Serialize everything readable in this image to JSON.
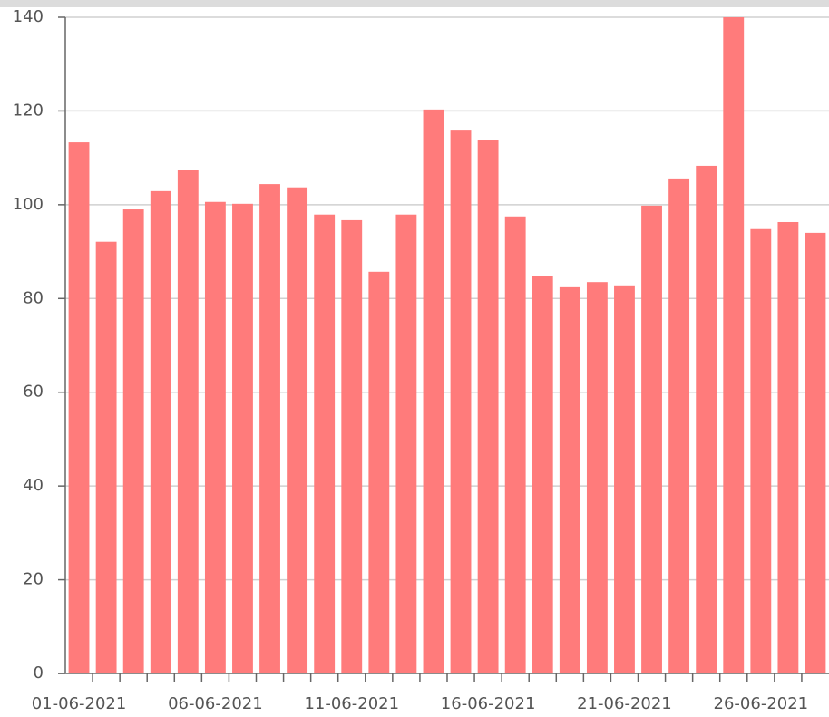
{
  "chart_data": {
    "type": "bar",
    "categories": [
      "01-06-2021",
      null,
      null,
      null,
      null,
      "06-06-2021",
      null,
      null,
      null,
      null,
      "11-06-2021",
      null,
      null,
      null,
      null,
      "16-06-2021",
      null,
      null,
      null,
      null,
      "21-06-2021",
      null,
      null,
      null,
      null,
      "26-06-2021",
      null,
      null
    ],
    "values": [
      113.3,
      92.1,
      99.0,
      102.9,
      107.5,
      100.6,
      100.2,
      104.4,
      103.7,
      97.9,
      96.7,
      85.7,
      97.9,
      120.3,
      116.0,
      113.7,
      97.5,
      84.7,
      82.4,
      83.5,
      82.8,
      99.8,
      105.6,
      108.3,
      140,
      94.8,
      96.3,
      94.0
    ],
    "color": "#ff7b7b",
    "ylim": [
      0,
      140
    ],
    "yticks": [
      0,
      20,
      40,
      60,
      80,
      100,
      120,
      140
    ],
    "grid": true
  }
}
